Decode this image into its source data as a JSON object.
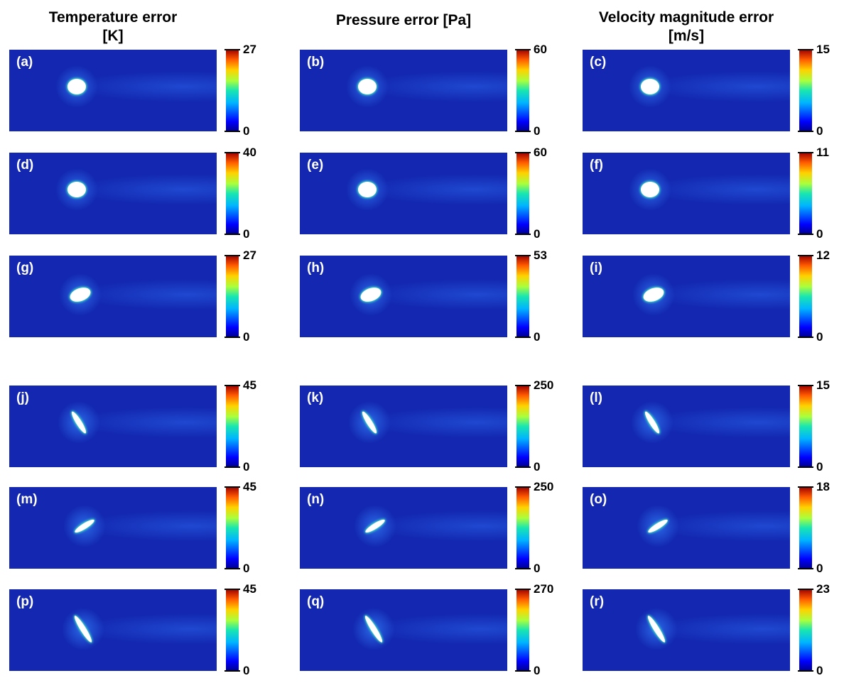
{
  "columns": [
    {
      "title": [
        "Temperature error",
        "[K]"
      ]
    },
    {
      "title": [
        "Pressure error [Pa]"
      ]
    },
    {
      "title": [
        "Velocity magnitude error",
        "[m/s]"
      ]
    }
  ],
  "panels": [
    {
      "label": "(a)",
      "colorbar": {
        "max": 27,
        "min": 0
      }
    },
    {
      "label": "(b)",
      "colorbar": {
        "max": 60,
        "min": 0
      }
    },
    {
      "label": "(c)",
      "colorbar": {
        "max": 15,
        "min": 0
      }
    },
    {
      "label": "(d)",
      "colorbar": {
        "max": 40,
        "min": 0
      }
    },
    {
      "label": "(e)",
      "colorbar": {
        "max": 60,
        "min": 0
      }
    },
    {
      "label": "(f)",
      "colorbar": {
        "max": 11,
        "min": 0
      }
    },
    {
      "label": "(g)",
      "colorbar": {
        "max": 27,
        "min": 0
      }
    },
    {
      "label": "(h)",
      "colorbar": {
        "max": 53,
        "min": 0
      }
    },
    {
      "label": "(i)",
      "colorbar": {
        "max": 12,
        "min": 0
      }
    },
    {
      "label": "(j)",
      "colorbar": {
        "max": 45,
        "min": 0
      }
    },
    {
      "label": "(k)",
      "colorbar": {
        "max": 250,
        "min": 0
      }
    },
    {
      "label": "(l)",
      "colorbar": {
        "max": 15,
        "min": 0
      }
    },
    {
      "label": "(m)",
      "colorbar": {
        "max": 45,
        "min": 0
      }
    },
    {
      "label": "(n)",
      "colorbar": {
        "max": 250,
        "min": 0
      }
    },
    {
      "label": "(o)",
      "colorbar": {
        "max": 18,
        "min": 0
      }
    },
    {
      "label": "(p)",
      "colorbar": {
        "max": 45,
        "min": 0
      }
    },
    {
      "label": "(q)",
      "colorbar": {
        "max": 270,
        "min": 0
      }
    },
    {
      "label": "(r)",
      "colorbar": {
        "max": 23,
        "min": 0
      }
    }
  ]
}
